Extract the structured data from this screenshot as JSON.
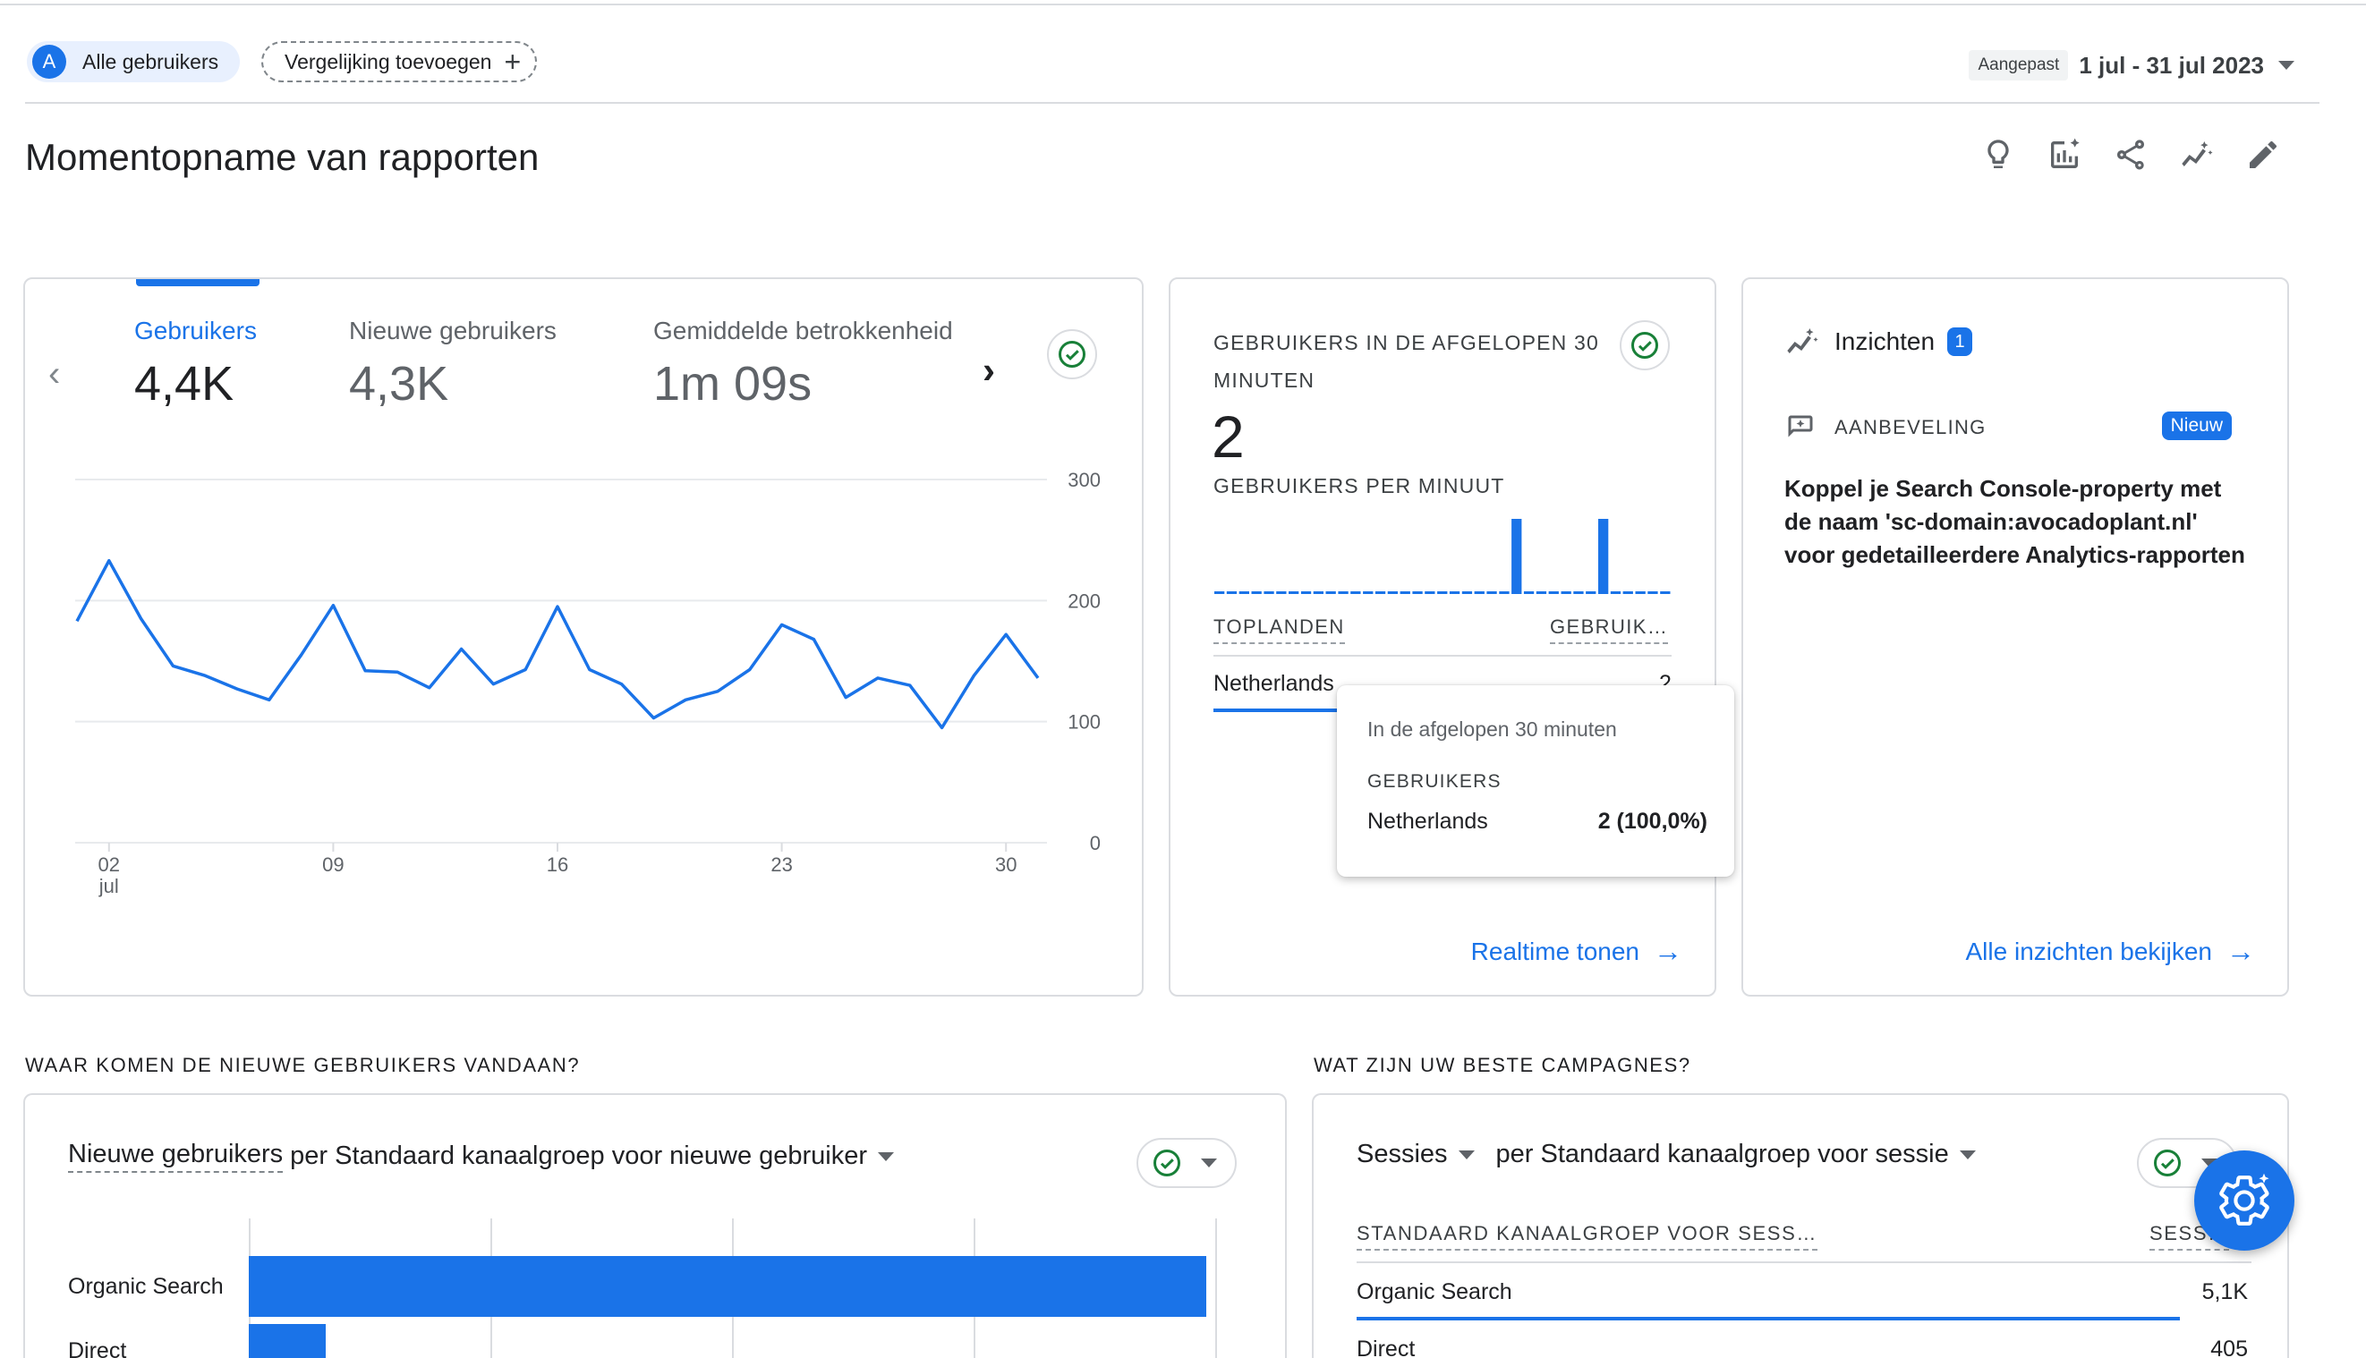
{
  "filters": {
    "segment_avatar": "A",
    "segment_label": "Alle gebruikers",
    "compare_label": "Vergelijking toevoegen",
    "date_badge": "Aangepast",
    "date_range": "1 jul - 31 jul 2023"
  },
  "page": {
    "title": "Momentopname van rapporten",
    "toolbar_icons": [
      "lightbulb-icon",
      "edit-report-icon",
      "share-icon",
      "insights-icon",
      "pencil-icon"
    ]
  },
  "overview": {
    "metrics": [
      {
        "label": "Gebruikers",
        "value": "4,4K",
        "active": true
      },
      {
        "label": "Nieuwe gebruikers",
        "value": "4,3K",
        "active": false
      },
      {
        "label": "Gemiddelde betrokkenheid",
        "value": "1m 09s",
        "active": false
      }
    ]
  },
  "chart_data": {
    "type": "line",
    "series": [
      {
        "values": [
          183,
          233,
          185,
          146,
          138,
          127,
          118,
          155,
          196,
          142,
          141,
          128,
          160,
          131,
          143,
          195,
          143,
          131,
          103,
          118,
          125,
          143,
          180,
          168,
          120,
          136,
          130,
          95,
          138,
          172,
          136
        ]
      }
    ],
    "x": [
      1,
      2,
      3,
      4,
      5,
      6,
      7,
      8,
      9,
      10,
      11,
      12,
      13,
      14,
      15,
      16,
      17,
      18,
      19,
      20,
      21,
      22,
      23,
      24,
      25,
      26,
      27,
      28,
      29,
      30,
      31
    ],
    "xticks": [
      "02",
      "09",
      "16",
      "23",
      "30"
    ],
    "xtick_values": [
      2,
      9,
      16,
      23,
      30
    ],
    "xtick_sub": "jul",
    "yticks": [
      "300",
      "200",
      "100",
      "0"
    ],
    "ylim": [
      0,
      300
    ],
    "grid": true,
    "color": "#1a73e8"
  },
  "realtime": {
    "title": "GEBRUIKERS IN DE AFGELOPEN 30 MINUTEN",
    "value": "2",
    "subtitle": "GEBRUIKERS PER MINUUT",
    "per_minute": [
      0,
      0,
      0,
      0,
      0,
      0,
      0,
      0,
      0,
      0,
      0,
      0,
      0,
      0,
      0,
      0,
      0,
      0,
      0,
      0,
      0,
      0,
      0,
      0,
      1,
      0,
      0,
      0,
      0,
      0,
      0,
      1,
      0,
      0,
      0,
      0,
      0
    ],
    "col_country": "TOPLANDEN",
    "col_users": "GEBRUIK…",
    "rows": [
      {
        "country": "Netherlands",
        "users": "2"
      }
    ],
    "link": "Realtime tonen",
    "tooltip": {
      "header": "In de afgelopen 30 minuten",
      "label": "GEBRUIKERS",
      "country": "Netherlands",
      "value": "2 (100,0%)"
    }
  },
  "insights": {
    "title": "Inzichten",
    "count": "1",
    "rec_label": "AANBEVELING",
    "new_badge": "Nieuw",
    "text": "Koppel je Search Console-property met de naam 'sc-domain:avocadoplant.nl' voor gedetailleerdere Analytics-rapporten",
    "link": "Alle inzichten bekijken"
  },
  "acquisition": {
    "section_title": "WAAR KOMEN DE NIEUWE GEBRUIKERS VANDAAN?",
    "metric": "Nieuwe gebruikers",
    "dimension": "per Standaard kanaalgroep voor nieuwe gebruiker",
    "bars": [
      {
        "label": "Organic Search",
        "fraction": 1.0
      },
      {
        "label": "Direct",
        "fraction": 0.08
      }
    ]
  },
  "campaigns": {
    "section_title": "WAT ZIJN UW BESTE CAMPAGNES?",
    "metric": "Sessies",
    "dimension": "per Standaard kanaalgroep voor sessie",
    "col_channel": "STANDAARD KANAALGROEP VOOR SESS…",
    "col_sessions": "SESS…",
    "rows": [
      {
        "label": "Organic Search",
        "value": "5,1K",
        "fraction": 0.92
      },
      {
        "label": "Direct",
        "value": "405",
        "fraction": 0.07
      }
    ]
  }
}
